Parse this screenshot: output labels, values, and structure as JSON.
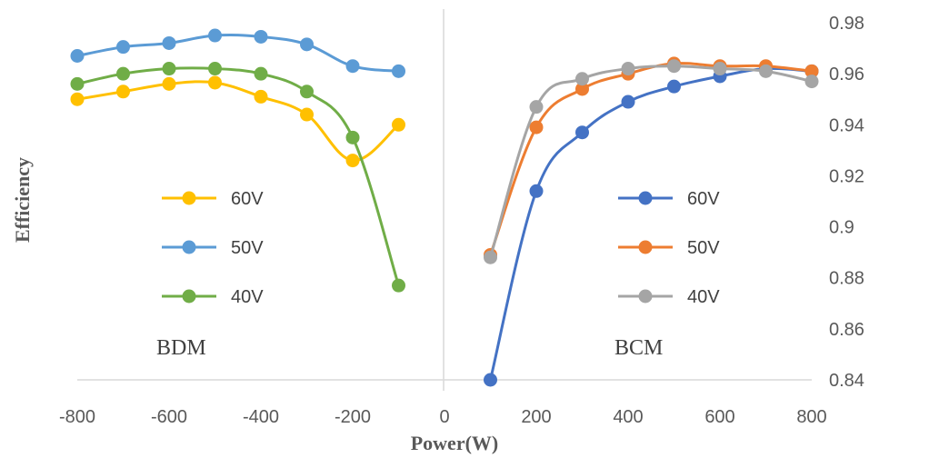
{
  "chart_data": {
    "type": "line",
    "xlabel": "Power(W)",
    "ylabel": "Efficiency",
    "xlim": [
      -800,
      800
    ],
    "ylim": [
      0.84,
      0.98
    ],
    "x_ticks": [
      "-800",
      "-600",
      "-400",
      "-200",
      "0",
      "200",
      "400",
      "600",
      "800"
    ],
    "x_tick_values": [
      -800,
      -600,
      -400,
      -200,
      0,
      200,
      400,
      600,
      800
    ],
    "y_ticks": [
      "0.98",
      "0.96",
      "0.94",
      "0.92",
      "0.9",
      "0.88",
      "0.86",
      "0.84"
    ],
    "y_tick_values": [
      0.98,
      0.96,
      0.94,
      0.92,
      0.9,
      0.88,
      0.86,
      0.84
    ],
    "y_axis_side": "right",
    "grid": false,
    "colors": {
      "60V": "#FFC000",
      "50V": "#5B9BD5",
      "40V": "#70AD47",
      "60V_bcm": "#4472C4",
      "50V_bcm": "#ED7D31",
      "40V_bcm": "#A5A5A5"
    },
    "panels": [
      {
        "annotation": "BDM",
        "legend_position": "center-left",
        "series": [
          {
            "name": "60V",
            "color": "#FFC000",
            "x": [
              -800,
              -700,
              -600,
              -500,
              -400,
              -300,
              -200,
              -100
            ],
            "y": [
              0.95,
              0.953,
              0.956,
              0.9565,
              0.951,
              0.944,
              0.926,
              0.94
            ]
          },
          {
            "name": "50V",
            "color": "#5B9BD5",
            "x": [
              -800,
              -700,
              -600,
              -500,
              -400,
              -300,
              -200,
              -100
            ],
            "y": [
              0.967,
              0.9705,
              0.972,
              0.975,
              0.9745,
              0.9715,
              0.963,
              0.961
            ]
          },
          {
            "name": "40V",
            "color": "#70AD47",
            "x": [
              -800,
              -700,
              -600,
              -500,
              -400,
              -300,
              -200,
              -100
            ],
            "y": [
              0.956,
              0.96,
              0.962,
              0.962,
              0.96,
              0.953,
              0.935,
              0.877
            ]
          }
        ]
      },
      {
        "annotation": "BCM",
        "legend_position": "center-right",
        "series": [
          {
            "name": "60V",
            "color": "#4472C4",
            "x": [
              100,
              200,
              300,
              400,
              500,
              600,
              700,
              800
            ],
            "y": [
              0.84,
              0.914,
              0.937,
              0.949,
              0.955,
              0.959,
              0.962,
              0.961
            ]
          },
          {
            "name": "50V",
            "color": "#ED7D31",
            "x": [
              100,
              200,
              300,
              400,
              500,
              600,
              700,
              800
            ],
            "y": [
              0.889,
              0.939,
              0.954,
              0.96,
              0.964,
              0.963,
              0.963,
              0.961
            ]
          },
          {
            "name": "40V",
            "color": "#A5A5A5",
            "x": [
              100,
              200,
              300,
              400,
              500,
              600,
              700,
              800
            ],
            "y": [
              0.888,
              0.947,
              0.958,
              0.962,
              0.963,
              0.962,
              0.961,
              0.957
            ]
          }
        ]
      }
    ]
  }
}
